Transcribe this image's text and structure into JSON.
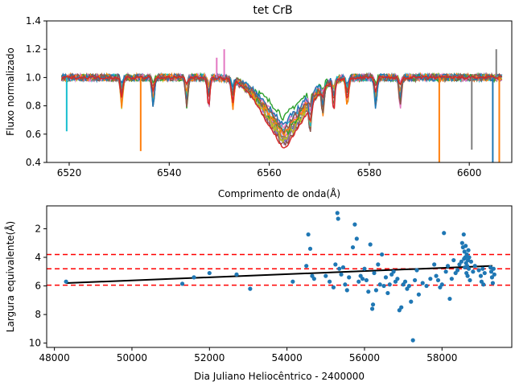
{
  "chart_data": [
    {
      "type": "line",
      "title": "tet CrB",
      "xlabel": "Comprimento de onda(Å)",
      "ylabel": "Fluxo normalizado",
      "xlim": [
        6515.5,
        6608.5
      ],
      "ylim": [
        0.4,
        1.4
      ],
      "xticks": [
        6520,
        6540,
        6560,
        6580,
        6600
      ],
      "yticks": [
        0.4,
        0.6,
        0.8,
        1.0,
        1.2,
        1.4
      ],
      "xtick_labels": [
        "6520",
        "6540",
        "6560",
        "6580",
        "6600"
      ],
      "ytick_labels": [
        "0.4",
        "0.6",
        "0.8",
        "1.0",
        "1.2",
        "1.4"
      ],
      "grid": false,
      "profile": {
        "center": 6563,
        "x_range": [
          6518.5,
          6606.5
        ],
        "broad_width": 6,
        "narrow_width": 1.2,
        "deep_trace": {
          "color": "#d62728",
          "min_flux": 0.46
        }
      },
      "series": [
        {
          "color": "#1f77b4",
          "min_flux": 0.62
        },
        {
          "color": "#ff7f0e",
          "min_flux": 0.64
        },
        {
          "color": "#2ca02c",
          "min_flux": 0.78
        },
        {
          "color": "#9467bd",
          "min_flux": 0.6
        },
        {
          "color": "#8c564b",
          "min_flux": 0.58
        },
        {
          "color": "#e377c2",
          "min_flux": 0.66
        },
        {
          "color": "#7f7f7f",
          "min_flux": 0.63
        },
        {
          "color": "#bcbd22",
          "min_flux": 0.61
        },
        {
          "color": "#17becf",
          "min_flux": 0.7
        },
        {
          "color": "#2ca02c",
          "min_flux": 0.66
        },
        {
          "color": "#e377c2",
          "min_flux": 0.72
        },
        {
          "color": "#ff7f0e",
          "min_flux": 0.67
        },
        {
          "color": "#1f77b4",
          "min_flux": 0.73
        },
        {
          "color": "#8c564b",
          "min_flux": 0.69
        }
      ],
      "spikes": [
        {
          "x": 6519.5,
          "y": 0.62,
          "color": "#17becf"
        },
        {
          "x": 6534.3,
          "y": 0.48,
          "color": "#ff7f0e"
        },
        {
          "x": 6549.5,
          "y": 1.14,
          "color": "#e377c2"
        },
        {
          "x": 6551.0,
          "y": 1.2,
          "color": "#e377c2"
        },
        {
          "x": 6594.0,
          "y": 0.4,
          "color": "#ff7f0e"
        },
        {
          "x": 6600.5,
          "y": 0.49,
          "color": "#7f7f7f"
        },
        {
          "x": 6604.7,
          "y": 0.4,
          "color": "#1f77b4"
        },
        {
          "x": 6605.4,
          "y": 1.2,
          "color": "#7f7f7f"
        },
        {
          "x": 6606.0,
          "y": 0.4,
          "color": "#ff7f0e"
        }
      ]
    },
    {
      "type": "scatter",
      "xlabel": "Dia Juliano Heliocêntrico - 2400000",
      "ylabel": "Largura equivalente(Å)",
      "xlim": [
        47800,
        59800
      ],
      "ylim": [
        10.3,
        0.4
      ],
      "y_inverted": true,
      "xticks": [
        48000,
        50000,
        52000,
        54000,
        56000,
        58000
      ],
      "yticks": [
        2,
        4,
        6,
        8,
        10
      ],
      "xtick_labels": [
        "48000",
        "50000",
        "52000",
        "54000",
        "56000",
        "58000"
      ],
      "ytick_labels": [
        "2",
        "4",
        "6",
        "8",
        "10"
      ],
      "grid": false,
      "point_color": "#1f77b4",
      "fit_line": {
        "x": [
          48300,
          59300
        ],
        "y": [
          5.8,
          4.6
        ],
        "color": "#000000"
      },
      "hlines": [
        {
          "y": 3.8,
          "color": "#ff0000",
          "style": "dashed"
        },
        {
          "y": 4.8,
          "color": "#ff0000",
          "style": "dashed"
        },
        {
          "y": 5.95,
          "color": "#ff0000",
          "style": "dashed"
        }
      ],
      "points": [
        [
          48300,
          5.7
        ],
        [
          51300,
          5.85
        ],
        [
          51600,
          5.4
        ],
        [
          52000,
          5.1
        ],
        [
          52700,
          5.2
        ],
        [
          53050,
          6.2
        ],
        [
          54150,
          5.7
        ],
        [
          54500,
          4.6
        ],
        [
          54550,
          2.4
        ],
        [
          54600,
          3.4
        ],
        [
          54650,
          5.3
        ],
        [
          54700,
          5.5
        ],
        [
          55000,
          5.3
        ],
        [
          55100,
          5.7
        ],
        [
          55200,
          6.1
        ],
        [
          55250,
          4.5
        ],
        [
          55300,
          0.9
        ],
        [
          55320,
          1.3
        ],
        [
          55350,
          4.8
        ],
        [
          55400,
          5.2
        ],
        [
          55450,
          4.7
        ],
        [
          55500,
          5.9
        ],
        [
          55550,
          6.3
        ],
        [
          55600,
          5.4
        ],
        [
          55700,
          3.3
        ],
        [
          55750,
          1.7
        ],
        [
          55800,
          2.7
        ],
        [
          55850,
          5.7
        ],
        [
          55900,
          5.3
        ],
        [
          55950,
          5.5
        ],
        [
          56000,
          4.8
        ],
        [
          56050,
          5.6
        ],
        [
          56100,
          6.4
        ],
        [
          56150,
          3.1
        ],
        [
          56200,
          7.6
        ],
        [
          56220,
          7.3
        ],
        [
          56250,
          5.1
        ],
        [
          56300,
          6.3
        ],
        [
          56350,
          4.5
        ],
        [
          56400,
          5.9
        ],
        [
          56450,
          3.8
        ],
        [
          56500,
          6.0
        ],
        [
          56550,
          5.4
        ],
        [
          56600,
          6.5
        ],
        [
          56650,
          5.9
        ],
        [
          56700,
          5.2
        ],
        [
          56750,
          5.0
        ],
        [
          56800,
          5.7
        ],
        [
          56850,
          5.5
        ],
        [
          56900,
          7.7
        ],
        [
          56950,
          7.5
        ],
        [
          57000,
          5.9
        ],
        [
          57050,
          5.7
        ],
        [
          57100,
          6.2
        ],
        [
          57150,
          6.0
        ],
        [
          57200,
          7.1
        ],
        [
          57250,
          9.8
        ],
        [
          57300,
          5.6
        ],
        [
          57350,
          4.9
        ],
        [
          57400,
          6.6
        ],
        [
          57500,
          5.8
        ],
        [
          57600,
          6.0
        ],
        [
          57700,
          5.5
        ],
        [
          57800,
          4.5
        ],
        [
          57850,
          5.3
        ],
        [
          57900,
          5.6
        ],
        [
          57950,
          6.1
        ],
        [
          58000,
          5.9
        ],
        [
          58050,
          2.3
        ],
        [
          58100,
          5.0
        ],
        [
          58150,
          4.6
        ],
        [
          58200,
          6.9
        ],
        [
          58250,
          5.5
        ],
        [
          58300,
          4.2
        ],
        [
          58350,
          5.1
        ],
        [
          58400,
          4.9
        ],
        [
          58450,
          4.5
        ],
        [
          58500,
          4.3
        ],
        [
          58520,
          3.0
        ],
        [
          58540,
          3.3
        ],
        [
          58560,
          2.4
        ],
        [
          58570,
          4.1
        ],
        [
          58580,
          3.6
        ],
        [
          58590,
          4.7
        ],
        [
          58600,
          4.0
        ],
        [
          58610,
          3.2
        ],
        [
          58620,
          4.4
        ],
        [
          58630,
          5.1
        ],
        [
          58640,
          3.8
        ],
        [
          58650,
          4.6
        ],
        [
          58660,
          5.3
        ],
        [
          58670,
          4.2
        ],
        [
          58680,
          3.5
        ],
        [
          58690,
          4.8
        ],
        [
          58700,
          4.0
        ],
        [
          58720,
          5.6
        ],
        [
          58750,
          4.3
        ],
        [
          58800,
          5.0
        ],
        [
          58850,
          4.6
        ],
        [
          58950,
          4.9
        ],
        [
          59000,
          5.3
        ],
        [
          59020,
          5.7
        ],
        [
          59050,
          4.8
        ],
        [
          59070,
          5.9
        ],
        [
          59100,
          5.1
        ],
        [
          59250,
          4.7
        ],
        [
          59270,
          5.0
        ],
        [
          59290,
          5.4
        ],
        [
          59310,
          5.8
        ],
        [
          59330,
          4.8
        ],
        [
          59350,
          5.2
        ]
      ]
    }
  ]
}
